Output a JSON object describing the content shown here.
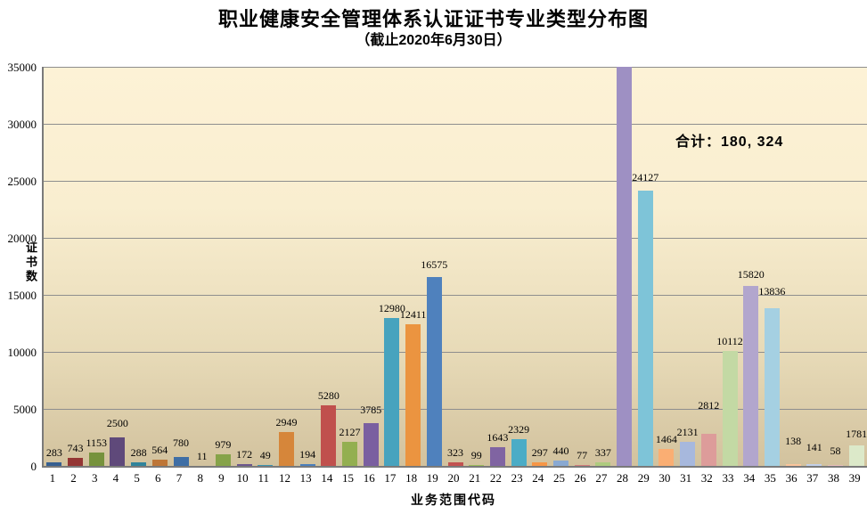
{
  "chart_data": {
    "type": "bar",
    "title": "职业健康安全管理体系认证证书专业类型分布图",
    "subtitle": "（截止2020年6月30日）",
    "xlabel": "业务范围代码",
    "ylabel": "证书数",
    "annotation": "合计：180, 324",
    "total": "180, 324",
    "legend": "none",
    "grid": true,
    "ylim": [
      0,
      35000
    ],
    "yticks": [
      0,
      5000,
      10000,
      15000,
      20000,
      25000,
      30000,
      35000
    ],
    "categories": [
      "1",
      "2",
      "3",
      "4",
      "5",
      "6",
      "7",
      "8",
      "9",
      "10",
      "11",
      "12",
      "13",
      "14",
      "15",
      "16",
      "17",
      "18",
      "19",
      "20",
      "21",
      "22",
      "23",
      "24",
      "25",
      "26",
      "27",
      "28",
      "29",
      "30",
      "31",
      "32",
      "33",
      "34",
      "35",
      "36",
      "37",
      "38",
      "39"
    ],
    "values": [
      283,
      743,
      1153,
      2500,
      288,
      564,
      780,
      11,
      979,
      172,
      49,
      2949,
      194,
      5280,
      2127,
      3785,
      12980,
      12411,
      16575,
      323,
      99,
      1643,
      2329,
      297,
      440,
      77,
      337,
      38536,
      24127,
      1464,
      2131,
      2812,
      10112,
      15820,
      13836,
      138,
      141,
      58,
      1781
    ],
    "labels": [
      "283",
      "743",
      "1153",
      "2500",
      "288",
      "564",
      "780",
      "11",
      "979",
      "172",
      "49",
      "2949",
      "194",
      "5280",
      "2127",
      "3785",
      "12980",
      "12411",
      "16575",
      "323",
      "99",
      "1643",
      "2329",
      "297",
      "440",
      "77",
      "337",
      "",
      "24127",
      "1464",
      "2131",
      "2812",
      "10112",
      "15820",
      "13836",
      "138",
      "141",
      "58",
      "1781"
    ],
    "colors": [
      "#365F91",
      "#943634",
      "#76923C",
      "#5F497A",
      "#31849B",
      "#BE7637",
      "#3F6EA5",
      "#A63F3C",
      "#86A349",
      "#6C568D",
      "#3C93AE",
      "#D6863A",
      "#4A7EBB",
      "#C0504D",
      "#93AF50",
      "#7A5FA0",
      "#47A3BE",
      "#EB9440",
      "#4F81BD",
      "#C25250",
      "#9BBB59",
      "#8064A2",
      "#4BACC6",
      "#F79646",
      "#89A9D2",
      "#D07C7A",
      "#AECB7E",
      "#9E90C3",
      "#7EC4D8",
      "#FAAE73",
      "#A7B8DD",
      "#DD9C9A",
      "#C3D9A4",
      "#B2A6CD",
      "#A5D0E2",
      "#FBC59B",
      "#C3D0E9",
      "#E9BEBD",
      "#DCE9C9"
    ],
    "label_dy": [
      0,
      0,
      0,
      -5,
      0,
      0,
      -5,
      0,
      0,
      0,
      0,
      0,
      0,
      0,
      0,
      -4,
      0,
      0,
      -3,
      0,
      0,
      0,
      0,
      0,
      0,
      0,
      0,
      0,
      -4,
      0,
      0,
      -21,
      0,
      -2,
      -8,
      -15,
      -8,
      -5,
      -2
    ],
    "plot_bg_top": "#fdf2d6",
    "plot_bg_bottom": "#d2c29e",
    "gridline_color": "#8e8e8e",
    "axis_color": "#7a7a7a"
  }
}
